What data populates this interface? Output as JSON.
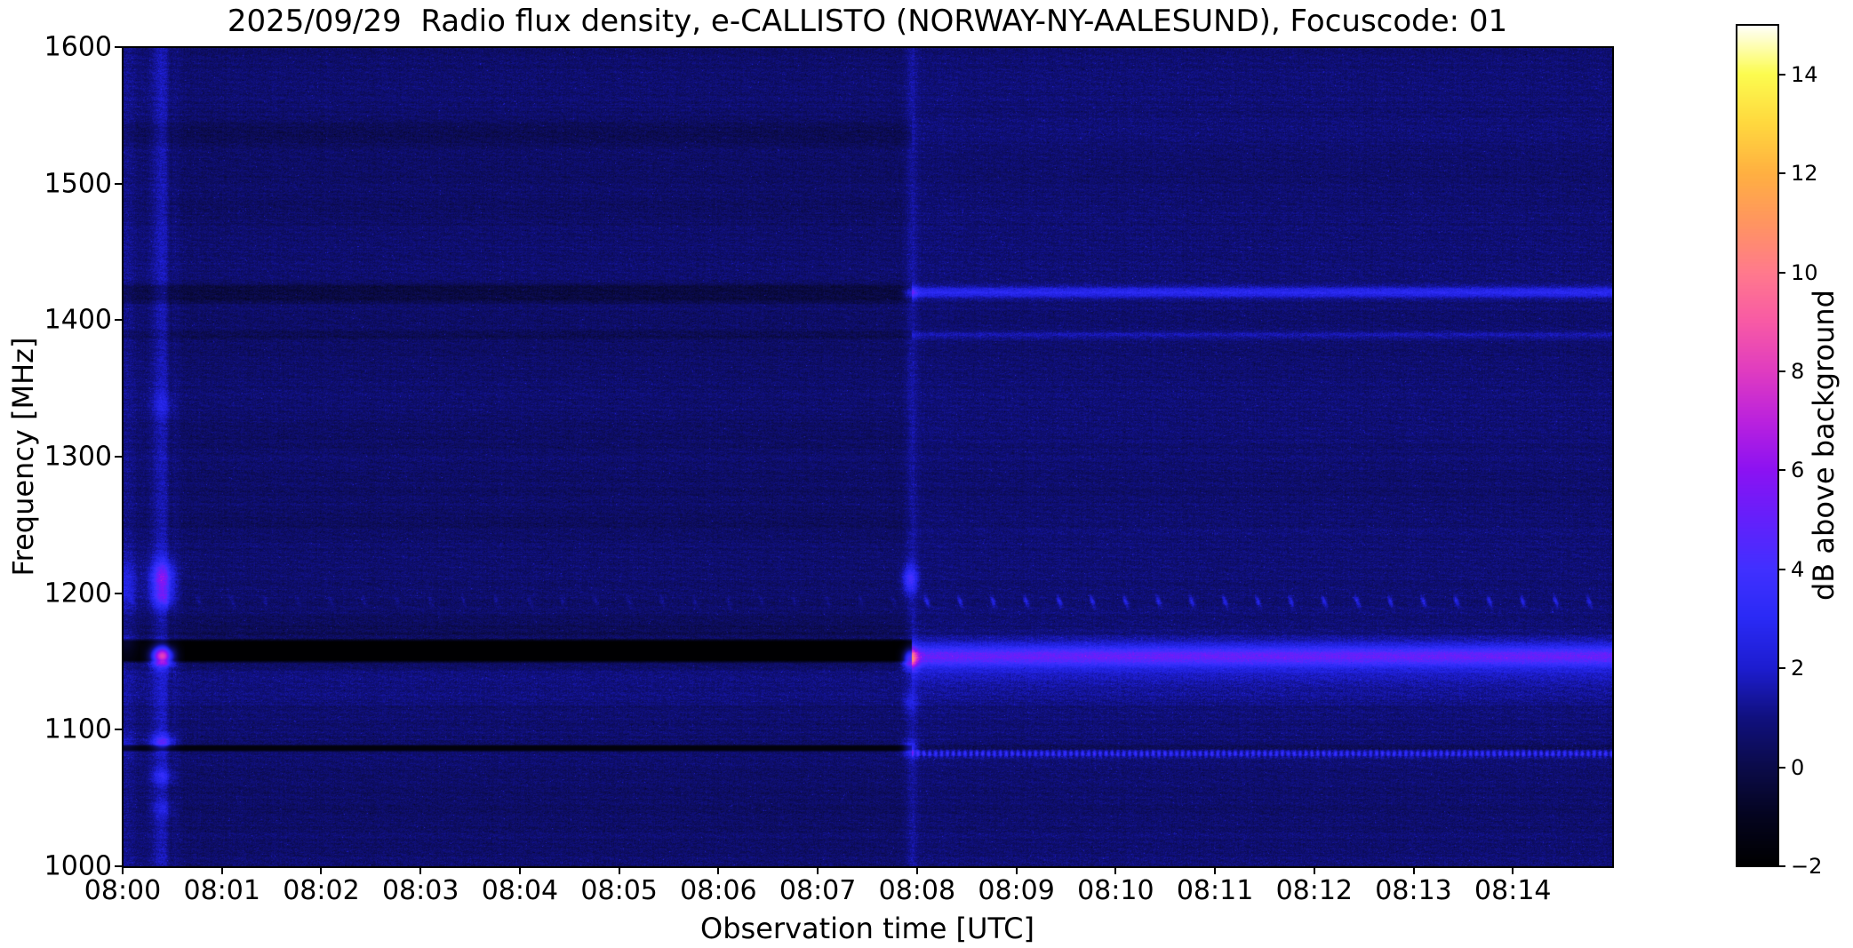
{
  "title": "2025/09/29  Radio flux density, e-CALLISTO (NORWAY-NY-AALESUND), Focuscode: 01",
  "chart_data": {
    "type": "heatmap",
    "title": "2025/09/29  Radio flux density, e-CALLISTO (NORWAY-NY-AALESUND), Focuscode: 01",
    "date": "2025/09/29",
    "instrument": "e-CALLISTO",
    "station": "NORWAY-NY-AALESUND",
    "focuscode": "01",
    "xlabel": "Observation time [UTC]",
    "ylabel": "Frequency [MHz]",
    "colorbar_label": "dB above background",
    "x_range_minutes": [
      0,
      15
    ],
    "x_start_time": "08:00",
    "x_ticks": [
      {
        "label": "08:00",
        "minute": 0
      },
      {
        "label": "08:01",
        "minute": 1
      },
      {
        "label": "08:02",
        "minute": 2
      },
      {
        "label": "08:03",
        "minute": 3
      },
      {
        "label": "08:04",
        "minute": 4
      },
      {
        "label": "08:05",
        "minute": 5
      },
      {
        "label": "08:06",
        "minute": 6
      },
      {
        "label": "08:07",
        "minute": 7
      },
      {
        "label": "08:08",
        "minute": 8
      },
      {
        "label": "08:09",
        "minute": 9
      },
      {
        "label": "08:10",
        "minute": 10
      },
      {
        "label": "08:11",
        "minute": 11
      },
      {
        "label": "08:12",
        "minute": 12
      },
      {
        "label": "08:13",
        "minute": 13
      },
      {
        "label": "08:14",
        "minute": 14
      }
    ],
    "y_range_mhz": [
      1000,
      1600
    ],
    "y_ticks": [
      {
        "label": "1600",
        "value": 1600
      },
      {
        "label": "1500",
        "value": 1500
      },
      {
        "label": "1400",
        "value": 1400
      },
      {
        "label": "1300",
        "value": 1300
      },
      {
        "label": "1200",
        "value": 1200
      },
      {
        "label": "1100",
        "value": 1100
      },
      {
        "label": "1000",
        "value": 1000
      }
    ],
    "color_range_db": [
      -2,
      15
    ],
    "colorbar_ticks": [
      {
        "label": "14",
        "value": 14
      },
      {
        "label": "12",
        "value": 12
      },
      {
        "label": "10",
        "value": 10
      },
      {
        "label": "8",
        "value": 8
      },
      {
        "label": "6",
        "value": 6
      },
      {
        "label": "4",
        "value": 4
      },
      {
        "label": "2",
        "value": 2
      },
      {
        "label": "0",
        "value": 0
      },
      {
        "label": "−2",
        "value": -2
      }
    ],
    "colormap_stops": [
      [
        -2.0,
        "#000000"
      ],
      [
        -1.0,
        "#04041f"
      ],
      [
        0.0,
        "#0b0b4a"
      ],
      [
        1.0,
        "#10107f"
      ],
      [
        2.0,
        "#1d1dd0"
      ],
      [
        3.0,
        "#2a2af5"
      ],
      [
        4.0,
        "#4130ff"
      ],
      [
        5.0,
        "#6420fb"
      ],
      [
        6.0,
        "#8c12f2"
      ],
      [
        7.0,
        "#bb22dd"
      ],
      [
        8.0,
        "#e03cc0"
      ],
      [
        9.0,
        "#f85aa5"
      ],
      [
        10.0,
        "#ff7a8c"
      ],
      [
        11.0,
        "#ff9560"
      ],
      [
        12.0,
        "#ffb041"
      ],
      [
        13.0,
        "#ffd83e"
      ],
      [
        14.0,
        "#fcfc4f"
      ],
      [
        15.0,
        "#ffffff"
      ]
    ],
    "features": {
      "base_db": 0.6,
      "right_half_start_min": 7.95,
      "right_half_offset_db": 0.12,
      "shade_bands": [
        {
          "name": "shade-above-notch",
          "f_lo": 1164,
          "f_hi": 1186,
          "edge": 7,
          "t_lo": 0,
          "t_hi": 15,
          "db": -0.32
        },
        {
          "name": "speckle-band-1120",
          "f_lo": 1116,
          "f_hi": 1148,
          "edge": 6,
          "t_lo": 0,
          "t_hi": 15,
          "db": 0.3
        },
        {
          "name": "dark-band-1420-left",
          "f_lo": 1411,
          "f_hi": 1428,
          "edge": 4,
          "t_lo": 0,
          "t_hi": 7.95,
          "db": -0.75
        },
        {
          "name": "dark-line-1389-left",
          "f_lo": 1385,
          "f_hi": 1393,
          "edge": 2.5,
          "t_lo": 0,
          "t_hi": 7.95,
          "db": -0.4
        },
        {
          "name": "dark-band-1538-left",
          "f_lo": 1524,
          "f_hi": 1550,
          "edge": 9,
          "t_lo": 0,
          "t_hi": 7.95,
          "db": -0.42
        },
        {
          "name": "band-1538-right",
          "f_lo": 1524,
          "f_hi": 1550,
          "edge": 9,
          "t_lo": 7.95,
          "t_hi": 15,
          "db": 0.1
        },
        {
          "name": "dark-band-1250-left",
          "f_lo": 1236,
          "f_hi": 1264,
          "edge": 10,
          "t_lo": 0,
          "t_hi": 7.95,
          "db": -0.2
        },
        {
          "name": "dark-band-1318-left",
          "f_lo": 1303,
          "f_hi": 1332,
          "edge": 10,
          "t_lo": 0,
          "t_hi": 7.95,
          "db": -0.15
        },
        {
          "name": "dark-band-1480-left",
          "f_lo": 1466,
          "f_hi": 1494,
          "edge": 10,
          "t_lo": 0,
          "t_hi": 7.95,
          "db": -0.15
        },
        {
          "name": "dark-line-1085-right",
          "f_lo": 1084,
          "f_hi": 1090,
          "edge": 2,
          "t_lo": 7.95,
          "t_hi": 15,
          "db": -0.5
        }
      ],
      "set_bands": [
        {
          "name": "rfi-notch-1150-1167",
          "f_lo": 1148.5,
          "f_hi": 1167,
          "edge": 2.5,
          "t_lo": 0,
          "t_hi": 7.95,
          "db": -1.95
        },
        {
          "name": "dark-line-1085-left",
          "f_lo": 1083.5,
          "f_hi": 1089.5,
          "edge": 1.8,
          "t_lo": 0,
          "t_hi": 7.95,
          "db": -1.6
        }
      ],
      "glow_lines": [
        {
          "name": "bright-band-1153-right",
          "f_c": 1153.5,
          "sigma": 5.5,
          "t_lo": 7.95,
          "t_hi": 15,
          "db": 3.4,
          "wing_sigma": 16,
          "wing_db": 1.0,
          "dotted": false
        },
        {
          "name": "bright-line-1420-right",
          "f_c": 1420.5,
          "sigma": 3.0,
          "t_lo": 7.95,
          "t_hi": 15,
          "db": 2.2,
          "wing_sigma": 0,
          "wing_db": 0,
          "dotted": false
        },
        {
          "name": "bright-line-1389-right",
          "f_c": 1389.0,
          "sigma": 2.0,
          "t_lo": 7.95,
          "t_hi": 15,
          "db": 0.9,
          "wing_sigma": 0,
          "wing_db": 0,
          "dotted": false
        },
        {
          "name": "dotted-line-1083-right",
          "f_c": 1082.5,
          "sigma": 1.7,
          "t_lo": 7.95,
          "t_hi": 15,
          "db": 2.6,
          "wing_sigma": 0,
          "wing_db": 0,
          "dotted": true
        }
      ],
      "vertical_events": [
        {
          "name": "calibration-spike-080025",
          "t_c": 0.4,
          "sigma_s": 4.8,
          "stripe_db": 1.1,
          "blobs": [
            {
              "f_c": 1211,
              "sigma": 9,
              "db": 4.2
            },
            {
              "f_c": 1196,
              "sigma": 5,
              "db": 2.2
            },
            {
              "f_c": 1154,
              "sigma": 5,
              "db": 9.0
            },
            {
              "f_c": 1091,
              "sigma": 4,
              "db": 3.2
            },
            {
              "f_c": 1066,
              "sigma": 4,
              "db": 1.6
            },
            {
              "f_c": 1042,
              "sigma": 4,
              "db": 1.0
            },
            {
              "f_c": 1338,
              "sigma": 6,
              "db": 0.9
            }
          ]
        },
        {
          "name": "calibration-dip-080029",
          "t_c": 0.48,
          "sigma_s": 1.4,
          "stripe_db": -0.55,
          "blobs": []
        },
        {
          "name": "pre-transition-dip",
          "t_c": 7.88,
          "sigma_s": 2.5,
          "stripe_db": -0.35,
          "blobs": []
        },
        {
          "name": "mode-change-0808",
          "t_c": 7.93,
          "sigma_s": 3.2,
          "stripe_db": 0.8,
          "blobs": [
            {
              "f_c": 1210,
              "sigma": 7,
              "db": 2.8
            },
            {
              "f_c": 1152,
              "sigma": 5,
              "db": 5.8
            },
            {
              "f_c": 1086,
              "sigma": 4,
              "db": 2.4
            },
            {
              "f_c": 1420,
              "sigma": 3,
              "db": 1.8
            },
            {
              "f_c": 1120,
              "sigma": 5,
              "db": 1.0
            }
          ]
        },
        {
          "name": "start-edge",
          "t_c": 0.04,
          "sigma_s": 5,
          "stripe_db": 0.5,
          "blobs": [
            {
              "f_c": 1206,
              "sigma": 12,
              "db": 1.4
            },
            {
              "f_c": 1164,
              "sigma": 6,
              "db": 0.8
            },
            {
              "f_c": 1090,
              "sigma": 5,
              "db": 0.8
            }
          ]
        }
      ],
      "periodic_dashes": {
        "f_base": 1194,
        "period_s": 20,
        "phase_offset_s": 4,
        "drift_mhz_per_s": -1.3,
        "sigma_mhz": 2.2,
        "db_left": 0.65,
        "db_right": 1.9
      },
      "noise": {
        "grain_db": 0.45,
        "row_db": 0.18,
        "col_db": 0.08,
        "herringbone_db": 0.12,
        "speckle_db": 1.5
      }
    }
  }
}
